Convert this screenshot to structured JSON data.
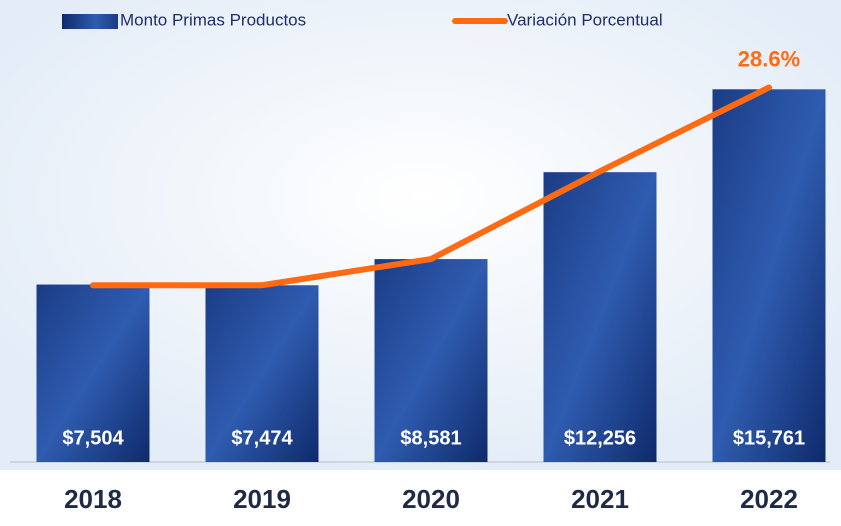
{
  "chart_data": {
    "type": "bar_line",
    "categories": [
      "2018",
      "2019",
      "2020",
      "2021",
      "2022"
    ],
    "series": [
      {
        "name": "Monto Primas Productos",
        "type": "bar",
        "color": "#1f3f8f",
        "values": [
          7504,
          7474,
          8581,
          12256,
          15761
        ],
        "value_labels": [
          "$7,504",
          "$7,474",
          "$8,581",
          "$12,256",
          "$15,761"
        ]
      },
      {
        "name": "Variación Porcentual",
        "type": "line",
        "axis": "y2",
        "color": "#ff6a13",
        "values": [
          13.5,
          13.5,
          15.5,
          22.2,
          28.6
        ],
        "value_labels": [
          null,
          null,
          null,
          null,
          "28.6%"
        ]
      }
    ],
    "ylim": [
      0,
      17000
    ],
    "y2lim": [
      0,
      30.7
    ],
    "legend": "top"
  }
}
